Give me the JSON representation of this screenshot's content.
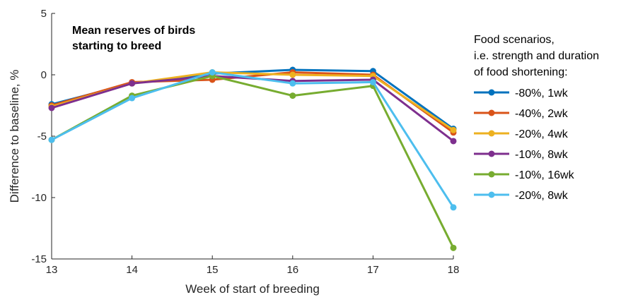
{
  "chart_data": {
    "type": "line",
    "title_lines": [
      "Mean reserves of birds",
      "starting to breed"
    ],
    "xlabel": "Week of start of breeding",
    "ylabel": "Difference to baseline, %",
    "x": [
      13,
      14,
      15,
      16,
      17,
      18
    ],
    "xlim": [
      13,
      18
    ],
    "ylim": [
      -15,
      5
    ],
    "yticks": [
      5,
      0,
      -5,
      -10,
      -15
    ],
    "grid": false,
    "legend_position": "right",
    "legend_title_lines": [
      "Food scenarios,",
      "i.e. strength and duration",
      "of food shortening:"
    ],
    "series": [
      {
        "name": "-80%, 1wk",
        "color": "#0072BD",
        "values": [
          -2.4,
          -0.7,
          0.1,
          0.4,
          0.3,
          -4.4
        ]
      },
      {
        "name": "-40%, 2wk",
        "color": "#D95319",
        "values": [
          -2.5,
          -0.6,
          -0.4,
          0.2,
          0.0,
          -4.7
        ]
      },
      {
        "name": "-20%, 4wk",
        "color": "#EDB120",
        "values": [
          -2.6,
          -0.7,
          0.2,
          0.0,
          -0.1,
          -4.5
        ]
      },
      {
        "name": "-10%, 8wk",
        "color": "#7E2F8E",
        "values": [
          -2.7,
          -0.7,
          -0.1,
          -0.5,
          -0.4,
          -5.4
        ]
      },
      {
        "name": "-10%, 16wk",
        "color": "#77AC30",
        "values": [
          -5.3,
          -1.7,
          -0.1,
          -1.7,
          -0.9,
          -14.1
        ]
      },
      {
        "name": "-20%, 8wk",
        "color": "#4DBEEE",
        "values": [
          -5.3,
          -1.9,
          0.2,
          -0.7,
          -0.6,
          -10.8
        ]
      }
    ]
  }
}
